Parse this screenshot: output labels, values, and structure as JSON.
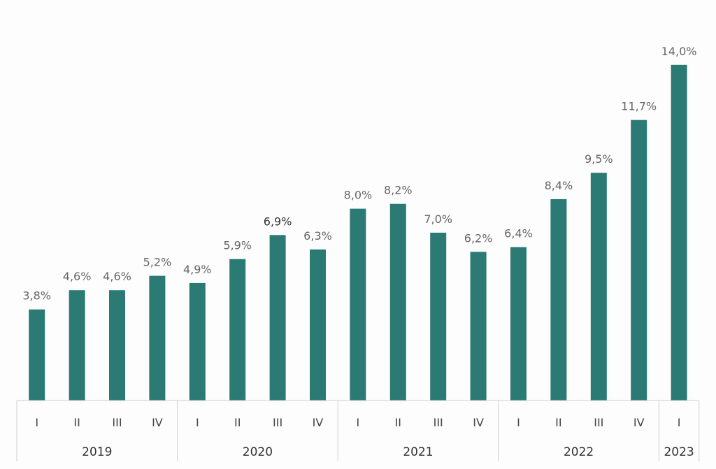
{
  "chart_data": {
    "type": "bar",
    "title": "",
    "xlabel": "",
    "ylabel": "",
    "ylim": [
      0,
      15
    ],
    "grid": false,
    "legend": "none",
    "bar_color": "#2b7a73",
    "label_color": "#666666",
    "highlight_label_color": "#333333",
    "categories": [
      "I",
      "II",
      "III",
      "IV",
      "I",
      "II",
      "III",
      "IV",
      "I",
      "II",
      "III",
      "IV",
      "I",
      "II",
      "III",
      "IV",
      "I"
    ],
    "groups": [
      {
        "label": "2019",
        "count": 4
      },
      {
        "label": "2020",
        "count": 4
      },
      {
        "label": "2021",
        "count": 4
      },
      {
        "label": "2022",
        "count": 4
      },
      {
        "label": "2023",
        "count": 1
      }
    ],
    "values": [
      3.8,
      4.6,
      4.6,
      5.2,
      4.9,
      5.9,
      6.9,
      6.3,
      8.0,
      8.2,
      7.0,
      6.2,
      6.4,
      8.4,
      9.5,
      11.7,
      14.0
    ],
    "data_labels": [
      "3,8%",
      "4,6%",
      "4,6%",
      "5,2%",
      "4,9%",
      "5,9%",
      "6,9%",
      "6,3%",
      "8,0%",
      "8,2%",
      "7,0%",
      "6,2%",
      "6,4%",
      "8,4%",
      "9,5%",
      "11,7%",
      "14,0%"
    ],
    "highlighted_label_index": 6
  }
}
